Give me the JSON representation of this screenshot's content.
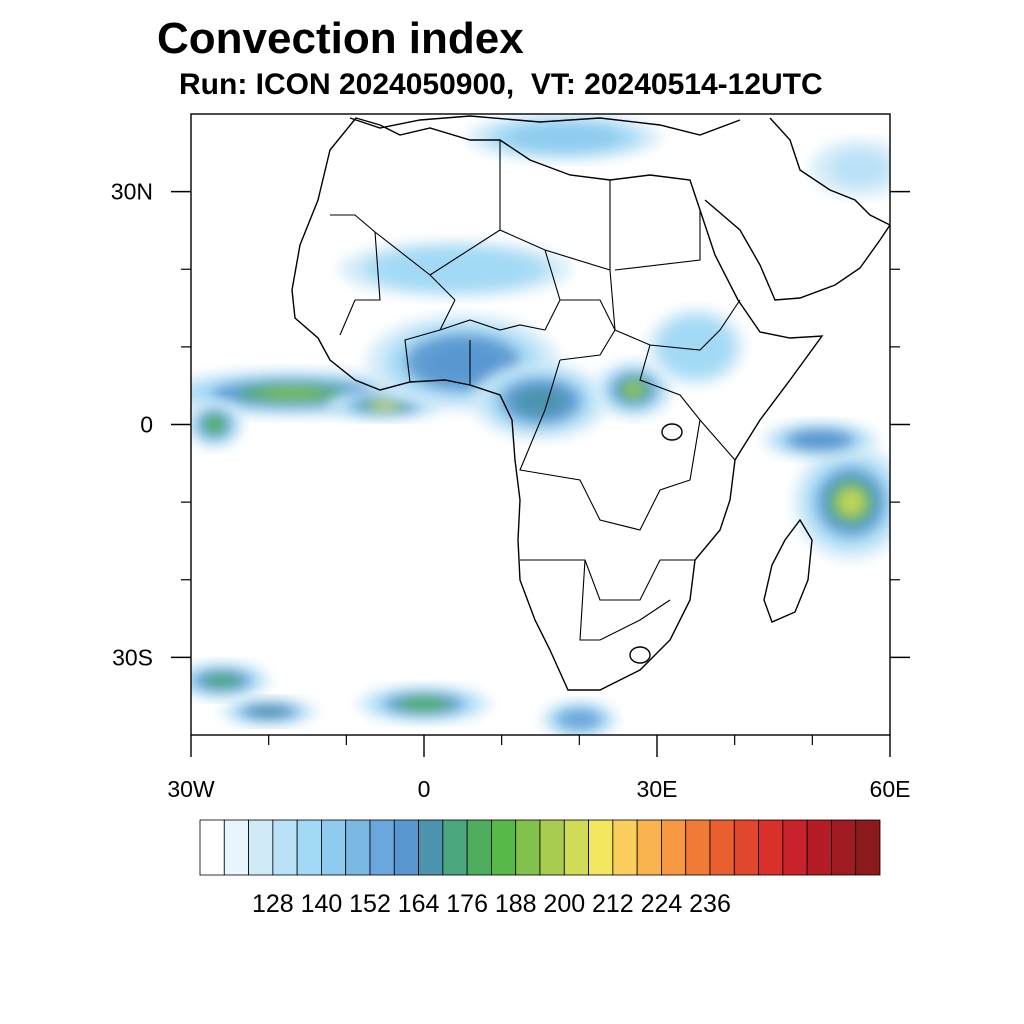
{
  "title": "Convection index",
  "subtitle": "Run: ICON 2024050900,  VT: 20240514-12UTC",
  "map": {
    "lon_range": [
      -30,
      60
    ],
    "lat_range": [
      -40,
      40
    ],
    "lon_ticks": [
      {
        "value": -30,
        "label": "30W"
      },
      {
        "value": 0,
        "label": "0"
      },
      {
        "value": 30,
        "label": "30E"
      },
      {
        "value": 60,
        "label": "60E"
      }
    ],
    "lat_ticks": [
      {
        "value": 30,
        "label": "30N"
      },
      {
        "value": 0,
        "label": "0"
      },
      {
        "value": -30,
        "label": "30S"
      }
    ],
    "minor_lon_ticks": [
      -20,
      -10,
      10,
      20,
      40,
      50
    ],
    "minor_lat_ticks": [
      20,
      10,
      -10,
      -20
    ],
    "fields": [
      {
        "name": "itcz-atlantic",
        "lon": -17,
        "lat": 4,
        "rlon": 14,
        "rlat": 2.5,
        "level": 190
      },
      {
        "name": "gulf-of-guinea",
        "lon": -5,
        "lat": 2.5,
        "rlon": 6,
        "rlat": 1.6,
        "level": 205
      },
      {
        "name": "west-africa",
        "lon": 5,
        "lat": 8,
        "rlon": 10,
        "rlat": 5,
        "level": 160
      },
      {
        "name": "central-africa",
        "lon": 15,
        "lat": 3,
        "rlon": 7,
        "rlat": 4,
        "level": 165
      },
      {
        "name": "south-sudan",
        "lon": 27,
        "lat": 4.5,
        "rlon": 4,
        "rlat": 3,
        "level": 195
      },
      {
        "name": "sahel-band",
        "lon": 4,
        "lat": 20,
        "rlon": 12,
        "rlat": 3,
        "level": 135
      },
      {
        "name": "east-africa",
        "lon": 35,
        "lat": 10,
        "rlon": 5,
        "rlat": 4,
        "level": 135
      },
      {
        "name": "indian-ocean",
        "lon": 55,
        "lat": -10,
        "rlon": 6,
        "rlat": 6,
        "level": 200
      },
      {
        "name": "indian-ocean-north",
        "lon": 51,
        "lat": -2,
        "rlon": 6,
        "rlat": 2,
        "level": 160
      },
      {
        "name": "south-atlantic",
        "lon": 0,
        "lat": -36,
        "rlon": 7,
        "rlat": 2,
        "level": 175
      },
      {
        "name": "south-atlantic-west",
        "lon": -26,
        "lat": -33,
        "rlon": 5,
        "rlat": 2,
        "level": 170
      },
      {
        "name": "south-atlantic-sw",
        "lon": -20,
        "lat": -37,
        "rlon": 5,
        "rlat": 1.5,
        "level": 165
      },
      {
        "name": "mediterranean",
        "lon": 18,
        "lat": 37,
        "rlon": 10,
        "rlat": 2.5,
        "level": 140
      },
      {
        "name": "mozambique-channel-s",
        "lon": 20,
        "lat": -38,
        "rlon": 4,
        "rlat": 2,
        "level": 150
      },
      {
        "name": "arabia-north",
        "lon": 56,
        "lat": 33,
        "rlon": 5,
        "rlat": 3,
        "level": 130
      },
      {
        "name": "equatorial-west",
        "lon": -27,
        "lat": 0,
        "rlon": 3,
        "rlat": 2.5,
        "level": 180
      }
    ]
  },
  "colorbar": {
    "colors": [
      "#ffffff",
      "#e8f5fc",
      "#d0eaf8",
      "#b9e1f7",
      "#a2d9f6",
      "#8ecbee",
      "#7ab9e4",
      "#6aa7dc",
      "#5897d0",
      "#4c93ae",
      "#4ca77e",
      "#4fae5d",
      "#57b948",
      "#82c14b",
      "#a8cc4f",
      "#d0dc55",
      "#f2e75e",
      "#fbcf5c",
      "#f8b24e",
      "#f59841",
      "#f17a36",
      "#ea5f2f",
      "#e1472c",
      "#d9302a",
      "#c8222a",
      "#b51c26",
      "#a01a22",
      "#8c1a1c"
    ],
    "labels": [
      "128",
      "140",
      "152",
      "164",
      "176",
      "188",
      "200",
      "212",
      "224",
      "236"
    ]
  }
}
